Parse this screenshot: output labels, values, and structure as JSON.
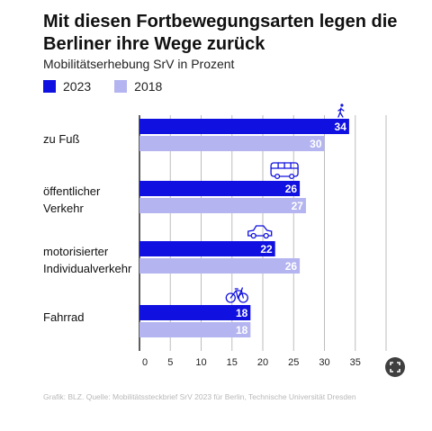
{
  "header": {
    "title": "Mit diesen Fortbewegungsarten legen die Berliner ihre Wege zurück",
    "subtitle": "Mobilitätserhebung SrV in Prozent"
  },
  "legend": [
    {
      "label": "2023",
      "color": "#1010e0"
    },
    {
      "label": "2018",
      "color": "#b4b4f0"
    }
  ],
  "chart_data": {
    "type": "bar",
    "orientation": "horizontal",
    "title": "Mit diesen Fortbewegungsarten legen die Berliner ihre Wege zurück",
    "subtitle": "Mobilitätserhebung SrV in Prozent",
    "categories": [
      "zu Fuß",
      "öffentlicher Verkehr",
      "motorisierter Individualverkehr",
      "Fahrrad"
    ],
    "category_icons": [
      "pedestrian-icon",
      "bus-icon",
      "car-icon",
      "bicycle-icon"
    ],
    "series": [
      {
        "name": "2023",
        "values": [
          34,
          26,
          22,
          18
        ],
        "color": "#1010e0"
      },
      {
        "name": "2018",
        "values": [
          30,
          27,
          26,
          18
        ],
        "color": "#b4b4f0"
      }
    ],
    "xlim": [
      0,
      40
    ],
    "xticks": [
      "0",
      "5",
      "10",
      "15",
      "20",
      "25",
      "30",
      "35"
    ],
    "grid": true
  },
  "footer": {
    "source": "Grafik: BLZ. Quelle: Mobilitätssteckbrief SrV 2023 für Berlin, Technische Universität Dresden"
  }
}
